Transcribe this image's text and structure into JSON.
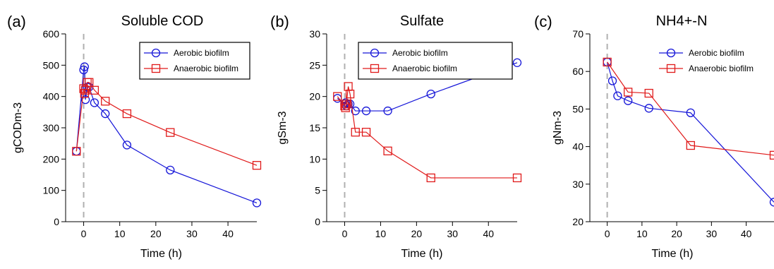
{
  "colors": {
    "aerobic": "#1515d8",
    "anaerobic": "#e01a1a",
    "refline": "#b0b0b0"
  },
  "chart_data": [
    {
      "type": "line",
      "panel_label": "(a)",
      "title": "Soluble COD",
      "xlabel": "Time (h)",
      "ylabel": "gCODm-3",
      "xlim": [
        -5,
        48
      ],
      "ylim": [
        0,
        600
      ],
      "xticks": [
        0,
        10,
        20,
        30,
        40
      ],
      "yticks": [
        0,
        100,
        200,
        300,
        400,
        500,
        600
      ],
      "xtick_labels": [
        "0",
        "10",
        "20",
        "30",
        "40"
      ],
      "ytick_labels": [
        "0",
        "100",
        "200",
        "300",
        "400",
        "500",
        "600"
      ],
      "reference_line_x": 0,
      "legend_position": "top-right",
      "legend_boxed": true,
      "series": [
        {
          "name": "Aerobic biofilm",
          "marker": "circle",
          "x": [
            -2,
            0,
            0.25,
            0.5,
            1,
            1.5,
            3,
            6,
            12,
            24,
            48
          ],
          "y": [
            225,
            485,
            495,
            390,
            430,
            430,
            380,
            345,
            245,
            165,
            60
          ]
        },
        {
          "name": "Anaerobic biofilm",
          "marker": "square",
          "x": [
            -2,
            0,
            0.25,
            0.5,
            1,
            1.5,
            3,
            6,
            12,
            24,
            48
          ],
          "y": [
            225,
            425,
            410,
            420,
            445,
            445,
            420,
            385,
            345,
            285,
            180
          ]
        }
      ]
    },
    {
      "type": "line",
      "panel_label": "(b)",
      "title": "Sulfate",
      "xlabel": "Time (h)",
      "ylabel": "gSm-3",
      "xlim": [
        -5,
        48
      ],
      "ylim": [
        0,
        30
      ],
      "xticks": [
        0,
        10,
        20,
        30,
        40
      ],
      "yticks": [
        0,
        5,
        10,
        15,
        20,
        25,
        30
      ],
      "xtick_labels": [
        "0",
        "10",
        "20",
        "30",
        "40"
      ],
      "ytick_labels": [
        "0",
        "5",
        "10",
        "15",
        "20",
        "25",
        "30"
      ],
      "reference_line_x": 0,
      "legend_position": "top-right",
      "legend_boxed": true,
      "series": [
        {
          "name": "Aerobic biofilm",
          "marker": "circle",
          "x": [
            -2,
            0,
            0.25,
            0.5,
            1,
            1.5,
            3,
            6,
            12,
            24,
            48
          ],
          "y": [
            19.7,
            18.8,
            19.0,
            18.5,
            18.8,
            18.8,
            17.7,
            17.7,
            17.7,
            20.4,
            25.4
          ]
        },
        {
          "name": "Anaerobic biofilm",
          "marker": "square",
          "x": [
            -2,
            0,
            0.25,
            0.5,
            1,
            1.5,
            3,
            6,
            12,
            24,
            48
          ],
          "y": [
            20.0,
            18.5,
            18.2,
            18.8,
            21.6,
            20.4,
            14.3,
            14.3,
            11.3,
            7.0,
            7.0
          ]
        }
      ]
    },
    {
      "type": "line",
      "panel_label": "(c)",
      "title": "NH4+-N",
      "xlabel": "Time (h)",
      "ylabel": "gNm-3",
      "xlim": [
        -5,
        48
      ],
      "ylim": [
        20,
        70
      ],
      "xticks": [
        0,
        10,
        20,
        30,
        40
      ],
      "yticks": [
        20,
        30,
        40,
        50,
        60,
        70
      ],
      "xtick_labels": [
        "0",
        "10",
        "20",
        "30",
        "40"
      ],
      "ytick_labels": [
        "20",
        "30",
        "40",
        "50",
        "60",
        "70"
      ],
      "reference_line_x": 0,
      "legend_position": "top-right",
      "legend_boxed": false,
      "series": [
        {
          "name": "Aerobic biofilm",
          "marker": "circle",
          "x": [
            0,
            1.5,
            3,
            6,
            12,
            24,
            48
          ],
          "y": [
            62.5,
            57.5,
            53.5,
            52.2,
            50.2,
            49.0,
            25.2
          ]
        },
        {
          "name": "Anaerobic biofilm",
          "marker": "square",
          "x": [
            0,
            6,
            12,
            24,
            48
          ],
          "y": [
            62.5,
            54.5,
            54.2,
            40.3,
            37.7
          ]
        }
      ]
    }
  ]
}
